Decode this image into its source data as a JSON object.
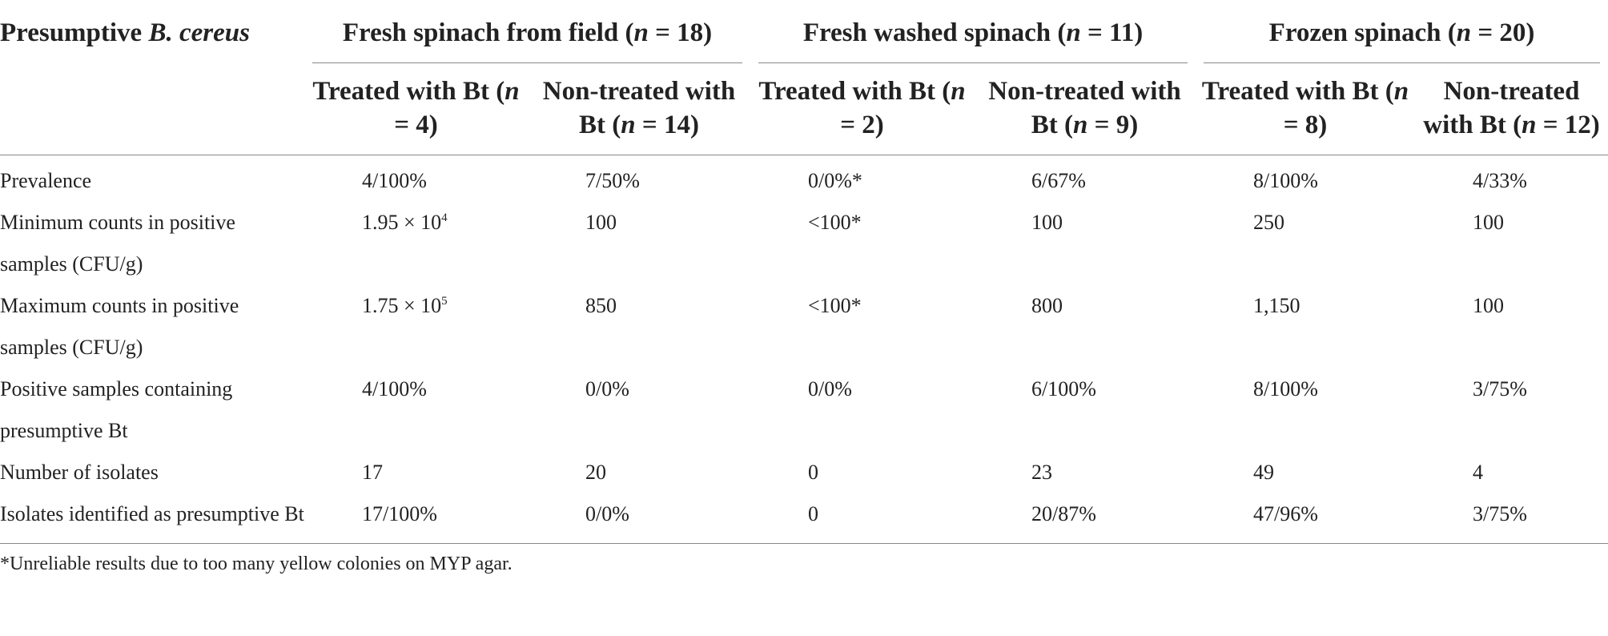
{
  "header": {
    "corner": [
      "Presumptive ",
      "B. cereus"
    ],
    "groups": [
      [
        "Fresh spinach from field (",
        "n",
        " = 18)"
      ],
      [
        "Fresh washed spinach (",
        "n",
        " = 11)"
      ],
      [
        "Frozen spinach (",
        "n",
        " = 20)"
      ]
    ],
    "subheaders": [
      [
        "Treated with Bt (",
        "n",
        " = 4)"
      ],
      [
        "Non-treated with Bt (",
        "n",
        " = 14)"
      ],
      [
        "Treated with Bt (",
        "n",
        " = 2)"
      ],
      [
        "Non-treated with Bt (",
        "n",
        " = 9)"
      ],
      [
        "Treated with Bt (",
        "n",
        " = 8)"
      ],
      [
        "Non-treated with Bt (",
        "n",
        " = 12)"
      ]
    ]
  },
  "rows": [
    {
      "label": "Prevalence",
      "cells": [
        [
          "4/100%"
        ],
        [
          "7/50%"
        ],
        [
          "0/0%*"
        ],
        [
          "6/67%"
        ],
        [
          "8/100%"
        ],
        [
          "4/33%"
        ]
      ]
    },
    {
      "label": "Minimum counts in positive samples (CFU/g)",
      "cells": [
        [
          "1.95 × 10",
          "4"
        ],
        [
          "100"
        ],
        [
          "<100*"
        ],
        [
          "100"
        ],
        [
          "250"
        ],
        [
          "100"
        ]
      ]
    },
    {
      "label": "Maximum counts in positive samples (CFU/g)",
      "cells": [
        [
          "1.75 × 10",
          "5"
        ],
        [
          "850"
        ],
        [
          "<100*"
        ],
        [
          "800"
        ],
        [
          "1,150"
        ],
        [
          "100"
        ]
      ]
    },
    {
      "label": "Positive samples containing presumptive Bt",
      "cells": [
        [
          "4/100%"
        ],
        [
          "0/0%"
        ],
        [
          "0/0%"
        ],
        [
          "6/100%"
        ],
        [
          "8/100%"
        ],
        [
          "3/75%"
        ]
      ]
    },
    {
      "label": "Number of isolates",
      "cells": [
        [
          "17"
        ],
        [
          "20"
        ],
        [
          "0"
        ],
        [
          "23"
        ],
        [
          "49"
        ],
        [
          "4"
        ]
      ]
    },
    {
      "label": "Isolates identified as presumptive Bt",
      "cells": [
        [
          "17/100%"
        ],
        [
          "0/0%"
        ],
        [
          "0"
        ],
        [
          "20/87%"
        ],
        [
          "47/96%"
        ],
        [
          "3/75%"
        ]
      ]
    }
  ],
  "footnote": "*Unreliable results due to too many yellow colonies on MYP agar."
}
